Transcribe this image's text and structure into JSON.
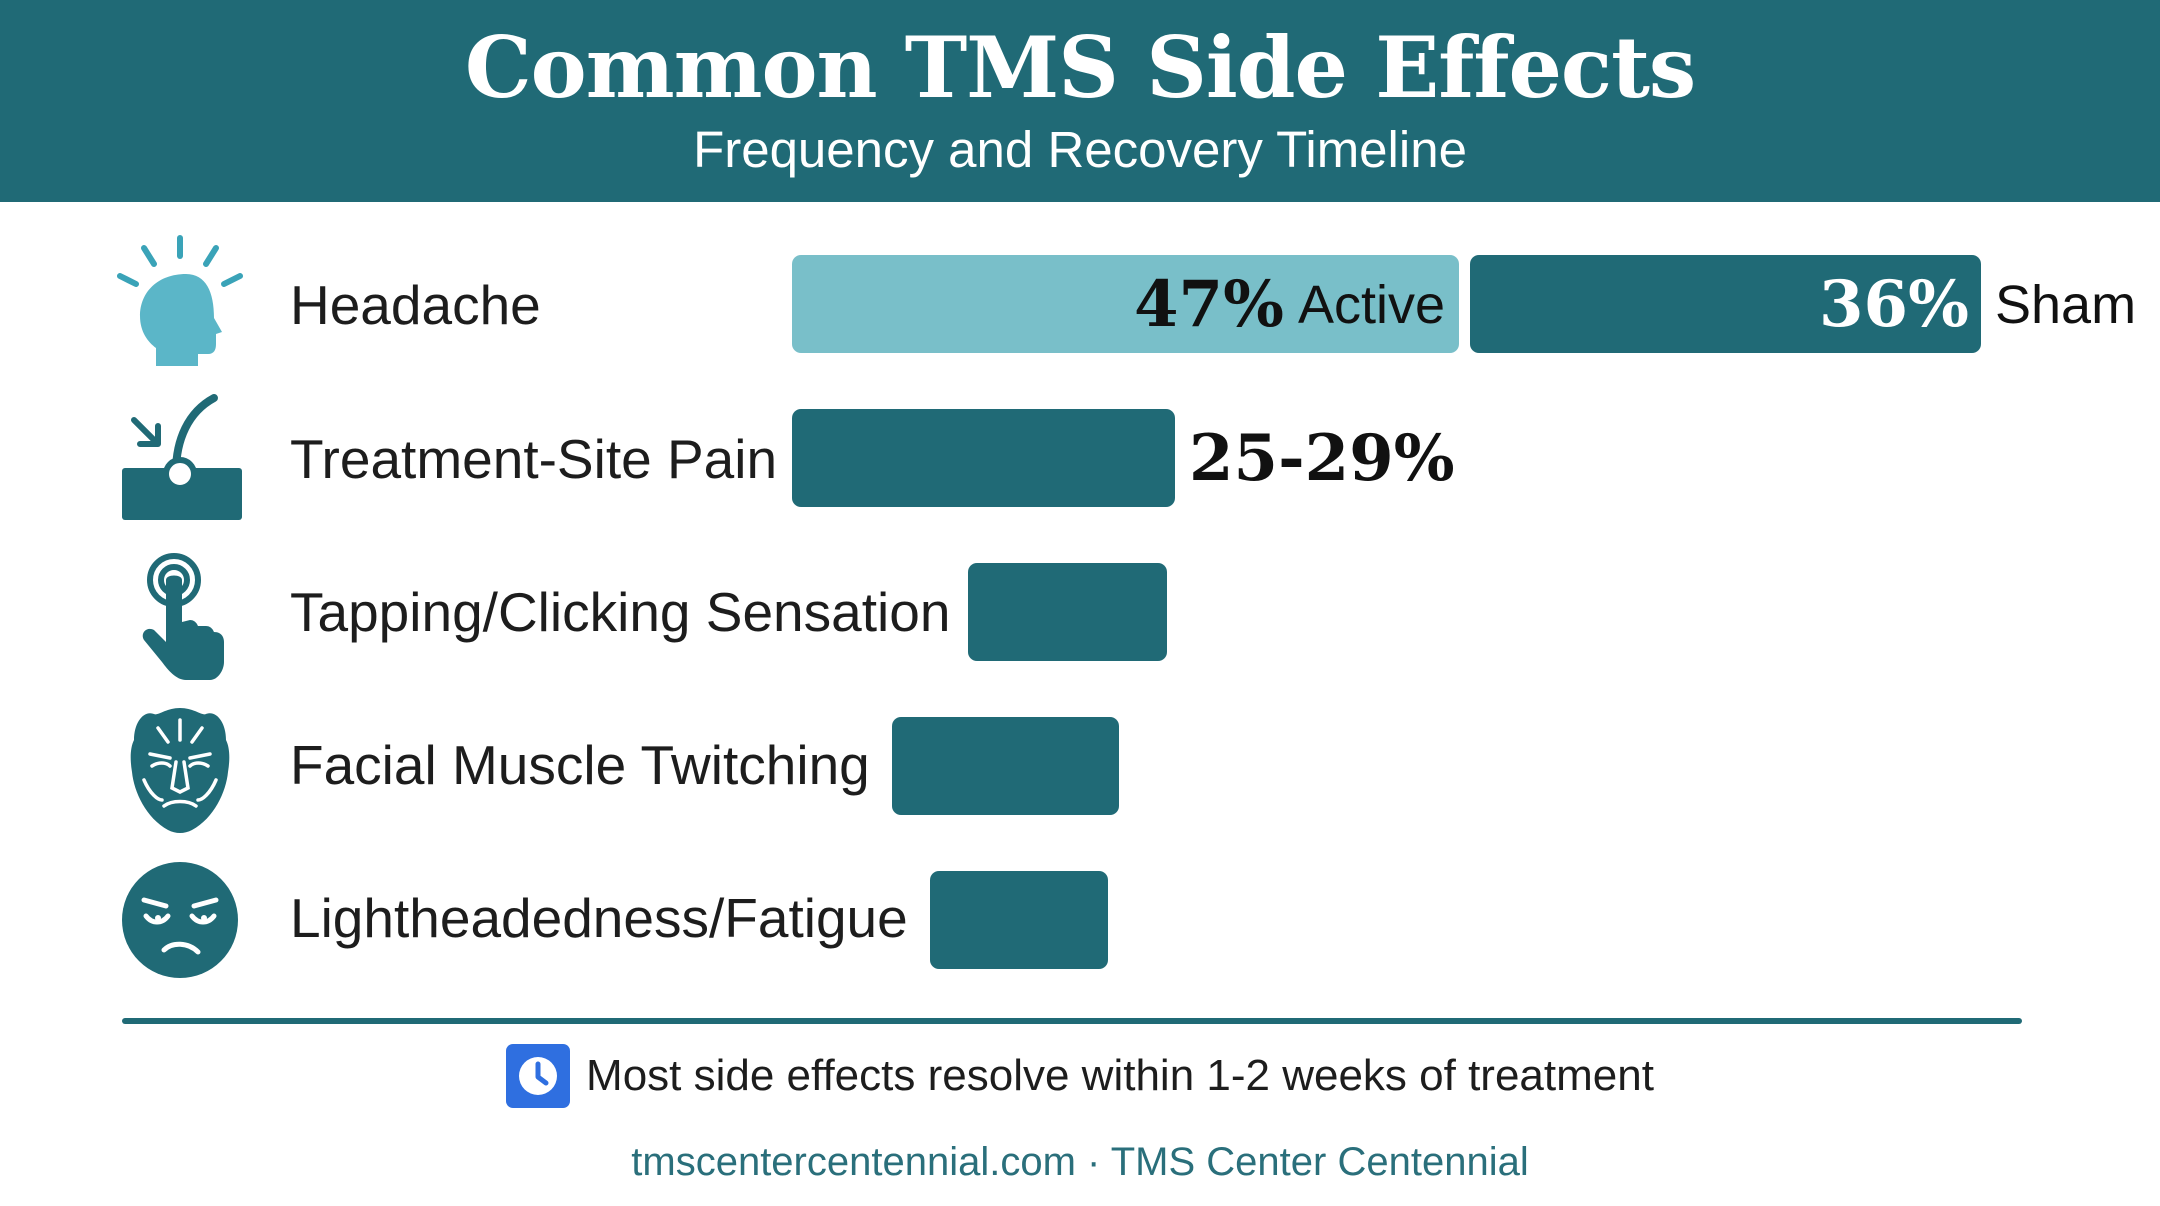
{
  "header": {
    "title": "Common TMS Side Effects",
    "subtitle": "Frequency and Recovery Timeline"
  },
  "colors": {
    "header_bg": "#206a76",
    "bar_primary": "#206a76",
    "bar_active": "#79bfc9",
    "note_icon": "#2f6fe0"
  },
  "chart_data": {
    "type": "bar",
    "orientation": "horizontal",
    "title": "Common TMS Side Effects",
    "subtitle": "Frequency and Recovery Timeline",
    "categories": [
      "Headache",
      "Treatment-Site Pain",
      "Tapping/Clicking Sensation",
      "Facial Muscle Twitching",
      "Lightheadedness/Fatigue"
    ],
    "icons": [
      "head-icon",
      "skin-pain-icon",
      "tap-finger-icon",
      "face-muscle-icon",
      "tired-face-icon"
    ],
    "headache": {
      "active": {
        "value": 47,
        "label": "47%",
        "name": "Active"
      },
      "sham": {
        "value": 36,
        "label": "36%",
        "name": "Sham"
      }
    },
    "values": [
      47,
      27,
      14,
      16,
      12.5
    ],
    "value_labels": [
      "47%",
      "25-29%",
      "",
      "",
      ""
    ]
  },
  "note": {
    "icon": "clock-icon",
    "text": "Most side effects resolve within 1-2 weeks of treatment"
  },
  "footer": {
    "text": "tmscentercentennial.com · TMS Center Centennial"
  }
}
